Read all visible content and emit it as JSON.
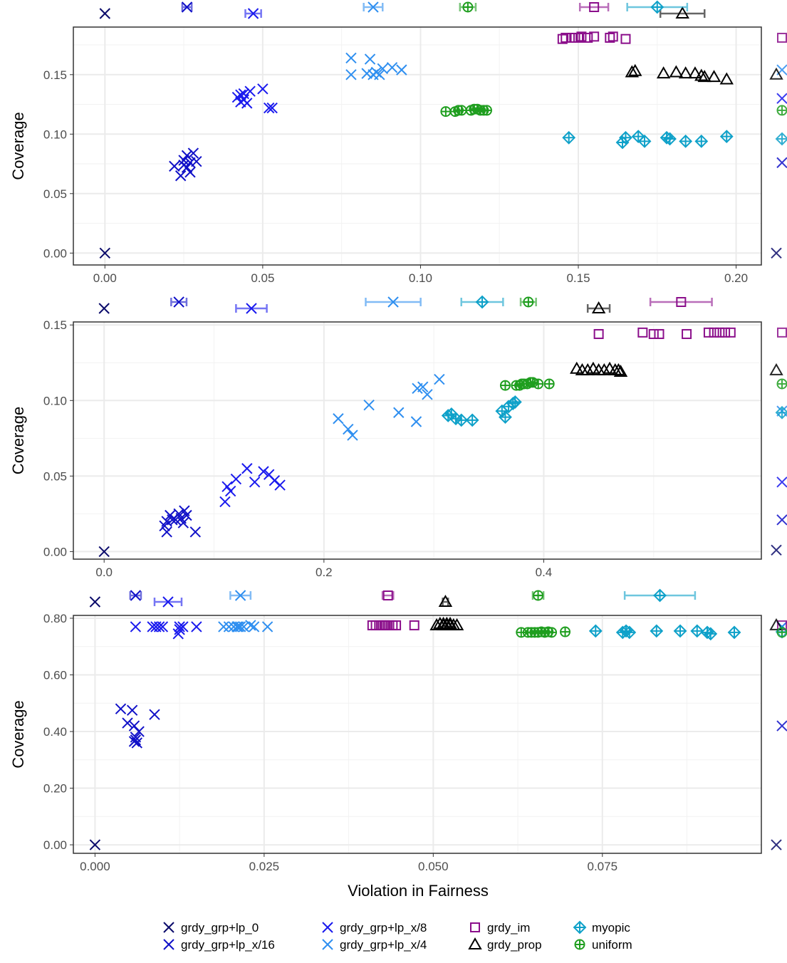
{
  "legend": [
    {
      "name": "grdy_grp+lp_0",
      "color": "#0b0b6b",
      "marker": "x"
    },
    {
      "name": "grdy_grp+lp_x/16",
      "color": "#1111c8",
      "marker": "x"
    },
    {
      "name": "grdy_grp+lp_x/8",
      "color": "#1a1aee",
      "marker": "x"
    },
    {
      "name": "grdy_grp+lp_x/4",
      "color": "#2f8ff0",
      "marker": "x"
    },
    {
      "name": "grdy_im",
      "color": "#8b0f8b",
      "marker": "square"
    },
    {
      "name": "grdy_prop",
      "color": "#000000",
      "marker": "triangle"
    },
    {
      "name": "myopic",
      "color": "#0fa1c9",
      "marker": "diamondplus"
    },
    {
      "name": "uniform",
      "color": "#1f9e1f",
      "marker": "circleplus"
    }
  ],
  "chart_data": [
    {
      "type": "scatter",
      "xlabel": "",
      "ylabel": "Coverage",
      "xlim": [
        -0.01,
        0.208
      ],
      "ylim": [
        -0.01,
        0.19
      ],
      "xticks": [
        0.0,
        0.05,
        0.1,
        0.15,
        0.2
      ],
      "xtick_labels": [
        "0.00",
        "0.05",
        "0.10",
        "0.15",
        "0.20"
      ],
      "yticks": [
        0.0,
        0.05,
        0.1,
        0.15
      ],
      "ytick_labels": [
        "0.00",
        "0.05",
        "0.10",
        "0.15"
      ],
      "grid": true,
      "series": [
        {
          "name": "grdy_grp+lp_0",
          "x": [
            0.0
          ],
          "y": [
            0.0
          ],
          "summary_x": 0.0,
          "summary_err": 0.0,
          "right_mean": 0.0
        },
        {
          "name": "grdy_grp+lp_x/16",
          "x": [
            0.022,
            0.024,
            0.025,
            0.026,
            0.027,
            0.027,
            0.028,
            0.029,
            0.026,
            0.025
          ],
          "y": [
            0.073,
            0.065,
            0.078,
            0.082,
            0.068,
            0.076,
            0.084,
            0.077,
            0.072,
            0.074
          ],
          "summary_x": 0.026,
          "summary_err": 0.0015,
          "right_mean": 0.076
        },
        {
          "name": "grdy_grp+lp_x/8",
          "x": [
            0.042,
            0.043,
            0.044,
            0.045,
            0.046,
            0.044,
            0.05,
            0.052,
            0.053,
            0.043
          ],
          "y": [
            0.131,
            0.127,
            0.134,
            0.126,
            0.136,
            0.129,
            0.138,
            0.122,
            0.122,
            0.133
          ],
          "summary_x": 0.047,
          "summary_err": 0.0025,
          "right_mean": 0.13
        },
        {
          "name": "grdy_grp+lp_x/4",
          "x": [
            0.078,
            0.078,
            0.083,
            0.084,
            0.085,
            0.086,
            0.087,
            0.088,
            0.091,
            0.094
          ],
          "y": [
            0.164,
            0.15,
            0.151,
            0.163,
            0.15,
            0.152,
            0.15,
            0.155,
            0.156,
            0.154
          ],
          "summary_x": 0.085,
          "summary_err": 0.003,
          "right_mean": 0.154
        },
        {
          "name": "grdy_im",
          "x": [
            0.145,
            0.146,
            0.148,
            0.149,
            0.15,
            0.151,
            0.153,
            0.155,
            0.16,
            0.161,
            0.165
          ],
          "y": [
            0.18,
            0.181,
            0.181,
            0.181,
            0.181,
            0.182,
            0.181,
            0.182,
            0.181,
            0.182,
            0.18
          ],
          "summary_x": 0.155,
          "summary_err": 0.0045,
          "right_mean": 0.181
        },
        {
          "name": "grdy_prop",
          "x": [
            0.168,
            0.167,
            0.177,
            0.181,
            0.184,
            0.187,
            0.19,
            0.193,
            0.197,
            0.189
          ],
          "y": [
            0.153,
            0.152,
            0.151,
            0.152,
            0.151,
            0.151,
            0.148,
            0.148,
            0.146,
            0.149
          ],
          "summary_x": 0.183,
          "summary_err": 0.007,
          "right_mean": 0.15
        },
        {
          "name": "myopic",
          "x": [
            0.147,
            0.164,
            0.165,
            0.169,
            0.171,
            0.178,
            0.179,
            0.184,
            0.189,
            0.197
          ],
          "y": [
            0.097,
            0.093,
            0.097,
            0.098,
            0.094,
            0.097,
            0.096,
            0.094,
            0.094,
            0.098
          ],
          "summary_x": 0.175,
          "summary_err": 0.0095,
          "right_mean": 0.096
        },
        {
          "name": "uniform",
          "x": [
            0.108,
            0.111,
            0.112,
            0.113,
            0.116,
            0.117,
            0.118,
            0.119,
            0.12,
            0.121
          ],
          "y": [
            0.119,
            0.119,
            0.12,
            0.12,
            0.12,
            0.121,
            0.121,
            0.12,
            0.12,
            0.12
          ],
          "summary_x": 0.115,
          "summary_err": 0.0025,
          "right_mean": 0.12
        }
      ]
    },
    {
      "type": "scatter",
      "xlabel": "",
      "ylabel": "Coverage",
      "xlim": [
        -0.028,
        0.598
      ],
      "ylim": [
        -0.005,
        0.152
      ],
      "xticks": [
        0.0,
        0.2,
        0.4
      ],
      "xtick_labels": [
        "0.0",
        "0.2",
        "0.4"
      ],
      "yticks": [
        0.0,
        0.05,
        0.1,
        0.15
      ],
      "ytick_labels": [
        "0.00",
        "0.05",
        "0.10",
        "0.15"
      ],
      "grid": true,
      "series": [
        {
          "name": "grdy_grp+lp_0",
          "x": [
            0.0
          ],
          "y": [
            0.0
          ],
          "summary_x": 0.0,
          "summary_err": 0.0,
          "right_mean": 0.001
        },
        {
          "name": "grdy_grp+lp_x/16",
          "x": [
            0.055,
            0.057,
            0.06,
            0.062,
            0.065,
            0.068,
            0.07,
            0.073,
            0.075,
            0.083,
            0.057,
            0.072
          ],
          "y": [
            0.017,
            0.013,
            0.024,
            0.021,
            0.021,
            0.025,
            0.022,
            0.027,
            0.024,
            0.013,
            0.02,
            0.019
          ],
          "summary_x": 0.068,
          "summary_err": 0.007,
          "right_mean": 0.021
        },
        {
          "name": "grdy_grp+lp_x/8",
          "x": [
            0.11,
            0.112,
            0.115,
            0.12,
            0.13,
            0.137,
            0.145,
            0.15,
            0.155,
            0.16
          ],
          "y": [
            0.033,
            0.043,
            0.04,
            0.048,
            0.055,
            0.046,
            0.053,
            0.051,
            0.047,
            0.044
          ],
          "summary_x": 0.134,
          "summary_err": 0.014,
          "right_mean": 0.046
        },
        {
          "name": "grdy_grp+lp_x/4",
          "x": [
            0.213,
            0.222,
            0.226,
            0.241,
            0.268,
            0.285,
            0.29,
            0.294,
            0.305,
            0.284
          ],
          "y": [
            0.088,
            0.081,
            0.077,
            0.097,
            0.092,
            0.108,
            0.109,
            0.104,
            0.114,
            0.086
          ],
          "summary_x": 0.263,
          "summary_err": 0.025,
          "right_mean": 0.093
        },
        {
          "name": "grdy_im",
          "x": [
            0.45,
            0.49,
            0.5,
            0.505,
            0.53,
            0.55,
            0.555,
            0.56,
            0.565,
            0.57
          ],
          "y": [
            0.144,
            0.145,
            0.144,
            0.144,
            0.144,
            0.145,
            0.145,
            0.145,
            0.145,
            0.145
          ],
          "summary_x": 0.525,
          "summary_err": 0.028,
          "right_mean": 0.145
        },
        {
          "name": "grdy_prop",
          "x": [
            0.43,
            0.435,
            0.44,
            0.445,
            0.45,
            0.455,
            0.46,
            0.465,
            0.468,
            0.47
          ],
          "y": [
            0.121,
            0.12,
            0.12,
            0.121,
            0.12,
            0.12,
            0.121,
            0.12,
            0.12,
            0.119
          ],
          "summary_x": 0.45,
          "summary_err": 0.01,
          "right_mean": 0.12
        },
        {
          "name": "myopic",
          "x": [
            0.313,
            0.316,
            0.32,
            0.325,
            0.335,
            0.362,
            0.365,
            0.368,
            0.372,
            0.374
          ],
          "y": [
            0.09,
            0.091,
            0.088,
            0.087,
            0.087,
            0.093,
            0.089,
            0.096,
            0.098,
            0.099
          ],
          "summary_x": 0.344,
          "summary_err": 0.019,
          "right_mean": 0.092
        },
        {
          "name": "uniform",
          "x": [
            0.365,
            0.375,
            0.378,
            0.38,
            0.382,
            0.385,
            0.388,
            0.39,
            0.395,
            0.405
          ],
          "y": [
            0.11,
            0.11,
            0.11,
            0.111,
            0.111,
            0.111,
            0.112,
            0.112,
            0.111,
            0.111
          ],
          "summary_x": 0.386,
          "summary_err": 0.007,
          "right_mean": 0.111
        }
      ]
    },
    {
      "type": "scatter",
      "xlabel": "Violation in Fairness",
      "ylabel": "Coverage",
      "xlim": [
        -0.0032,
        0.0985
      ],
      "ylim": [
        -0.03,
        0.81
      ],
      "xticks": [
        0.0,
        0.025,
        0.05,
        0.075
      ],
      "xtick_labels": [
        "0.000",
        "0.025",
        "0.050",
        "0.075"
      ],
      "yticks": [
        0.0,
        0.2,
        0.4,
        0.6,
        0.8
      ],
      "ytick_labels": [
        "0.00",
        "0.20",
        "0.40",
        "0.60",
        "0.80"
      ],
      "grid": true,
      "series": [
        {
          "name": "grdy_grp+lp_0",
          "x": [
            0.0
          ],
          "y": [
            0.0
          ],
          "summary_x": 0.0,
          "summary_err": 0.0,
          "right_mean": 0.0
        },
        {
          "name": "grdy_grp+lp_x/16",
          "x": [
            0.0038,
            0.0048,
            0.0055,
            0.0058,
            0.006,
            0.0062,
            0.0065,
            0.0088,
            0.006,
            0.0058
          ],
          "y": [
            0.48,
            0.43,
            0.475,
            0.42,
            0.37,
            0.36,
            0.4,
            0.46,
            0.38,
            0.365
          ],
          "summary_x": 0.006,
          "summary_err": 0.0008,
          "right_mean": 0.42
        },
        {
          "name": "grdy_grp+lp_x/8",
          "x": [
            0.006,
            0.0085,
            0.009,
            0.0095,
            0.01,
            0.0125,
            0.0123,
            0.013,
            0.015,
            0.0125
          ],
          "y": [
            0.77,
            0.77,
            0.77,
            0.77,
            0.77,
            0.77,
            0.745,
            0.77,
            0.77,
            0.76
          ],
          "summary_x": 0.0108,
          "summary_err": 0.002,
          "right_mean": 0.77
        },
        {
          "name": "grdy_grp+lp_x/4",
          "x": [
            0.019,
            0.0198,
            0.0205,
            0.021,
            0.0215,
            0.022,
            0.023,
            0.0235,
            0.0255,
            0.0212
          ],
          "y": [
            0.77,
            0.77,
            0.77,
            0.77,
            0.77,
            0.77,
            0.775,
            0.77,
            0.77,
            0.77
          ],
          "summary_x": 0.0215,
          "summary_err": 0.0015,
          "right_mean": 0.77
        },
        {
          "name": "grdy_im",
          "x": [
            0.041,
            0.0415,
            0.042,
            0.0425,
            0.043,
            0.0435,
            0.044,
            0.0445,
            0.0472,
            0.0428
          ],
          "y": [
            0.775,
            0.775,
            0.775,
            0.775,
            0.775,
            0.775,
            0.775,
            0.775,
            0.775,
            0.775
          ],
          "summary_x": 0.0433,
          "summary_err": 0.0008,
          "right_mean": 0.775
        },
        {
          "name": "grdy_prop",
          "x": [
            0.0505,
            0.051,
            0.0515,
            0.052,
            0.0525,
            0.053,
            0.0535,
            0.0515,
            0.052,
            0.0525
          ],
          "y": [
            0.775,
            0.78,
            0.775,
            0.78,
            0.775,
            0.775,
            0.775,
            0.78,
            0.775,
            0.78
          ],
          "summary_x": 0.0518,
          "summary_err": 0.0004,
          "right_mean": 0.775
        },
        {
          "name": "myopic",
          "x": [
            0.074,
            0.078,
            0.0785,
            0.079,
            0.083,
            0.0865,
            0.089,
            0.0905,
            0.091,
            0.0945
          ],
          "y": [
            0.755,
            0.75,
            0.755,
            0.75,
            0.755,
            0.755,
            0.755,
            0.75,
            0.745,
            0.75
          ],
          "summary_x": 0.0835,
          "summary_err": 0.0052,
          "right_mean": 0.752
        },
        {
          "name": "uniform",
          "x": [
            0.063,
            0.064,
            0.0645,
            0.065,
            0.0655,
            0.066,
            0.0665,
            0.067,
            0.0675,
            0.0695
          ],
          "y": [
            0.75,
            0.75,
            0.75,
            0.75,
            0.75,
            0.752,
            0.75,
            0.752,
            0.75,
            0.752
          ],
          "summary_x": 0.0655,
          "summary_err": 0.0008,
          "right_mean": 0.75
        }
      ]
    }
  ]
}
